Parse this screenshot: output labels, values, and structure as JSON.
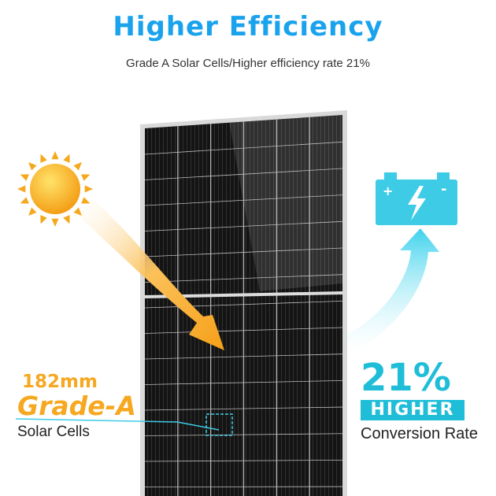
{
  "header": {
    "title": "Higher Efficiency",
    "subtitle": "Grade A Solar Cells/Higher efficiency rate 21%"
  },
  "left_callout": {
    "size": "182mm",
    "grade": "Grade-A",
    "label": "Solar Cells"
  },
  "right_callout": {
    "percent": "21%",
    "badge": "HIGHER",
    "label": "Conversion Rate"
  },
  "battery": {
    "plus": "+",
    "minus": "-"
  },
  "colors": {
    "title": "#1aa3ec",
    "accent_cyan": "#1fbdd8",
    "accent_orange": "#f6a821",
    "panel": "#1a1a1a"
  },
  "icons": [
    "sun-icon",
    "battery-icon",
    "lightning-icon",
    "arrow-icon"
  ]
}
